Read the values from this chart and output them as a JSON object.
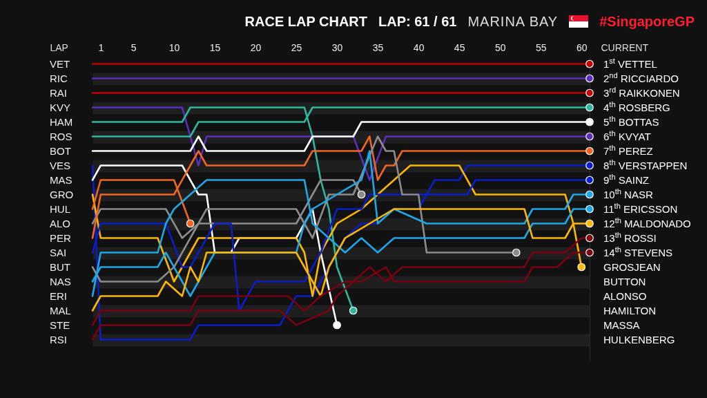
{
  "chart_data": {
    "type": "line",
    "title": "RACE LAP CHART",
    "annotations": [
      "LAP: 61 / 61",
      "MARINA BAY",
      "#SingaporeGP"
    ],
    "xlabel": "LAP",
    "y2label": "CURRENT",
    "xlim": [
      0,
      61
    ],
    "xticks": [
      1,
      5,
      10,
      15,
      20,
      25,
      30,
      35,
      40,
      45,
      50,
      55,
      60
    ],
    "y2lim": [
      21.5,
      0.5
    ],
    "y2ticks": [
      {
        "value": 1,
        "label": "1$^{st}$ VETTEL"
      },
      {
        "value": 2,
        "label": "2$^{nd}$ RICCIARDO"
      },
      {
        "value": 3,
        "label": "3$^{rd}$ RAIKKONEN"
      },
      {
        "value": 4,
        "label": "4$^{th}$ ROSBERG"
      },
      {
        "value": 5,
        "label": "5$^{th}$ BOTTAS"
      },
      {
        "value": 6,
        "label": "6$^{th}$ KVYAT"
      },
      {
        "value": 7,
        "label": "7$^{th}$ PEREZ"
      },
      {
        "value": 8,
        "label": "8$^{th}$ VERSTAPPEN"
      },
      {
        "value": 9,
        "label": "9$^{th}$ SAINZ"
      },
      {
        "value": 10,
        "label": "10$^{th}$ NASR"
      },
      {
        "value": 11,
        "label": "11$^{th}$ ERICSSON"
      },
      {
        "value": 12,
        "label": "12$^{th}$ MALDONADO"
      },
      {
        "value": 13,
        "label": "13$^{th}$ ROSSI"
      },
      {
        "value": 14,
        "label": "14$^{th}$ STEVENS"
      },
      {
        "value": 15,
        "label": "GROSJEAN"
      },
      {
        "value": 16,
        "label": "BUTTON"
      },
      {
        "value": 17,
        "label": "ALONSO"
      },
      {
        "value": 18,
        "label": "HAMILTON"
      },
      {
        "value": 19,
        "label": "MASSA"
      },
      {
        "value": 20,
        "label": "HULKENBERG"
      }
    ],
    "grid": "y",
    "legend": false,
    "line_style": "solid",
    "series": [
      {
        "name": "VET",
        "axis": "y2",
        "color": "#c00000",
        "x": [
          0,
          61
        ],
        "values": [
          1,
          1
        ]
      },
      {
        "name": "RIC",
        "axis": "y2",
        "color": "#5a2fc0",
        "x": [
          0,
          61
        ],
        "values": [
          2,
          2
        ]
      },
      {
        "name": "RAI",
        "axis": "y2",
        "color": "#c00000",
        "x": [
          0,
          61
        ],
        "values": [
          3,
          3
        ]
      },
      {
        "name": "KVY",
        "axis": "y2",
        "color": "#5a2fc0",
        "x": [
          0,
          11,
          12,
          13,
          14,
          32,
          34,
          36,
          61
        ],
        "values": [
          4,
          4,
          6,
          8,
          6,
          6,
          9,
          6,
          6
        ]
      },
      {
        "name": "HAM",
        "axis": "y2",
        "color": "#2fb8a0",
        "x": [
          0,
          11,
          12,
          26,
          27,
          28,
          29,
          30,
          32
        ],
        "values": [
          5,
          5,
          4,
          4,
          6,
          9,
          11,
          15,
          18
        ]
      },
      {
        "name": "ROS",
        "axis": "y2",
        "color": "#2fb8a0",
        "x": [
          0,
          12,
          13,
          26,
          27,
          61
        ],
        "values": [
          6,
          6,
          5,
          5,
          4,
          4
        ]
      },
      {
        "name": "BOT",
        "axis": "y2",
        "color": "#ffffff",
        "x": [
          0,
          12,
          13,
          14,
          26,
          27,
          32,
          33,
          61
        ],
        "values": [
          7,
          7,
          6,
          7,
          7,
          6,
          6,
          5,
          5
        ]
      },
      {
        "name": "VES",
        "axis": "y2",
        "color": "#0a1ec8",
        "x": [
          0,
          1,
          12,
          13,
          23,
          25,
          27,
          29,
          31,
          33,
          35,
          37,
          40,
          42,
          45,
          46,
          61
        ],
        "values": [
          8,
          20,
          20,
          19,
          19,
          17,
          17,
          15,
          13,
          12,
          12,
          11,
          11,
          9,
          9,
          8,
          8
        ]
      },
      {
        "name": "MAS",
        "axis": "y2",
        "color": "#ffffff",
        "x": [
          0,
          1,
          11,
          13,
          14,
          15,
          17,
          18,
          25,
          27,
          28,
          30
        ],
        "values": [
          9,
          8,
          8,
          10,
          10,
          14,
          14,
          13,
          13,
          11,
          14,
          19
        ]
      },
      {
        "name": "GRO",
        "axis": "y2",
        "color": "#ffb800",
        "x": [
          0,
          1,
          8,
          10,
          11,
          12,
          13,
          25,
          26,
          27,
          28,
          29,
          30,
          33,
          35,
          37,
          39,
          45,
          47,
          58,
          59,
          60
        ],
        "values": [
          10,
          13,
          13,
          16,
          15,
          14,
          13,
          13,
          14,
          17,
          14,
          13,
          12,
          11,
          10,
          9,
          8,
          8,
          10,
          10,
          12,
          15
        ]
      },
      {
        "name": "HUL",
        "axis": "y2",
        "color": "#f26522",
        "x": [
          0,
          1,
          10,
          12
        ],
        "values": [
          11,
          9,
          9,
          12
        ]
      },
      {
        "name": "ALO",
        "axis": "y2",
        "color": "#8c8c8c",
        "x": [
          0,
          1,
          9,
          11,
          13,
          25,
          26,
          27,
          28,
          32,
          33
        ],
        "values": [
          12,
          11,
          11,
          13,
          12,
          12,
          11,
          10,
          9,
          9,
          10
        ]
      },
      {
        "name": "PER",
        "axis": "y2",
        "color": "#f26522",
        "x": [
          0,
          1,
          10,
          13,
          14,
          26,
          27,
          33,
          34,
          35,
          36,
          37,
          38,
          61
        ],
        "values": [
          13,
          10,
          10,
          7,
          8,
          8,
          7,
          7,
          6,
          9,
          8,
          8,
          7,
          7
        ]
      },
      {
        "name": "SAI",
        "axis": "y2",
        "color": "#0a1ec8",
        "x": [
          0,
          1,
          9,
          11,
          12,
          15,
          17,
          18,
          20,
          26,
          28,
          30,
          33,
          34,
          42,
          46,
          47,
          61
        ],
        "values": [
          14,
          12,
          12,
          15,
          15,
          12,
          12,
          18,
          16,
          16,
          14,
          11,
          11,
          10,
          10,
          10,
          9,
          9
        ]
      },
      {
        "name": "BUT",
        "axis": "y2",
        "color": "#8c8c8c",
        "x": [
          0,
          1,
          8,
          10,
          12,
          14,
          25,
          27,
          29,
          32,
          35,
          36,
          37,
          38,
          40,
          41,
          52
        ],
        "values": [
          15,
          16,
          16,
          15,
          13,
          11,
          11,
          13,
          10,
          10,
          6,
          7,
          7,
          10,
          10,
          14,
          14
        ]
      },
      {
        "name": "NAS",
        "axis": "y2",
        "color": "#1ea8e8",
        "x": [
          0,
          1,
          8,
          9,
          12,
          15,
          25,
          26,
          27,
          30,
          33,
          34,
          35,
          37,
          41,
          53,
          54,
          58,
          59,
          61
        ],
        "values": [
          16,
          15,
          15,
          14,
          17,
          14,
          14,
          12,
          11,
          10,
          9,
          7,
          12,
          11,
          12,
          12,
          11,
          11,
          10,
          10
        ]
      },
      {
        "name": "ERI",
        "axis": "y2",
        "color": "#1ea8e8",
        "x": [
          0,
          1,
          8,
          9,
          10,
          12,
          14,
          26,
          27,
          29,
          31,
          33,
          35,
          37,
          53,
          54,
          58,
          59,
          61
        ],
        "values": [
          17,
          14,
          14,
          12,
          11,
          10,
          9,
          9,
          12,
          13,
          14,
          13,
          14,
          13,
          13,
          12,
          12,
          11,
          11
        ]
      },
      {
        "name": "MAL",
        "axis": "y2",
        "color": "#ffb800",
        "x": [
          0,
          1,
          8,
          9,
          11,
          12,
          13,
          14,
          25,
          27,
          28,
          29,
          31,
          34,
          37,
          53,
          54,
          58,
          59,
          61
        ],
        "values": [
          18,
          17,
          17,
          16,
          17,
          15,
          16,
          14,
          14,
          16,
          17,
          15,
          13,
          12,
          11,
          11,
          13,
          13,
          12,
          12
        ]
      },
      {
        "name": "STE",
        "axis": "y2",
        "color": "#7a0010",
        "x": [
          0,
          1,
          12,
          13,
          24,
          26,
          28,
          31,
          33,
          36,
          37,
          41,
          53,
          54,
          57,
          59,
          61
        ],
        "values": [
          19,
          18,
          18,
          17,
          17,
          18,
          17,
          16,
          16,
          15,
          16,
          16,
          16,
          15,
          15,
          14,
          14
        ]
      },
      {
        "name": "RSI",
        "axis": "y2",
        "color": "#7a0010",
        "x": [
          0,
          1,
          12,
          13,
          23,
          25,
          29,
          30,
          32,
          34,
          36,
          38,
          53,
          54,
          58,
          60,
          61
        ],
        "values": [
          20,
          19,
          19,
          18,
          18,
          19,
          18,
          17,
          16,
          15,
          16,
          15,
          15,
          14,
          14,
          13,
          13
        ]
      }
    ]
  }
}
